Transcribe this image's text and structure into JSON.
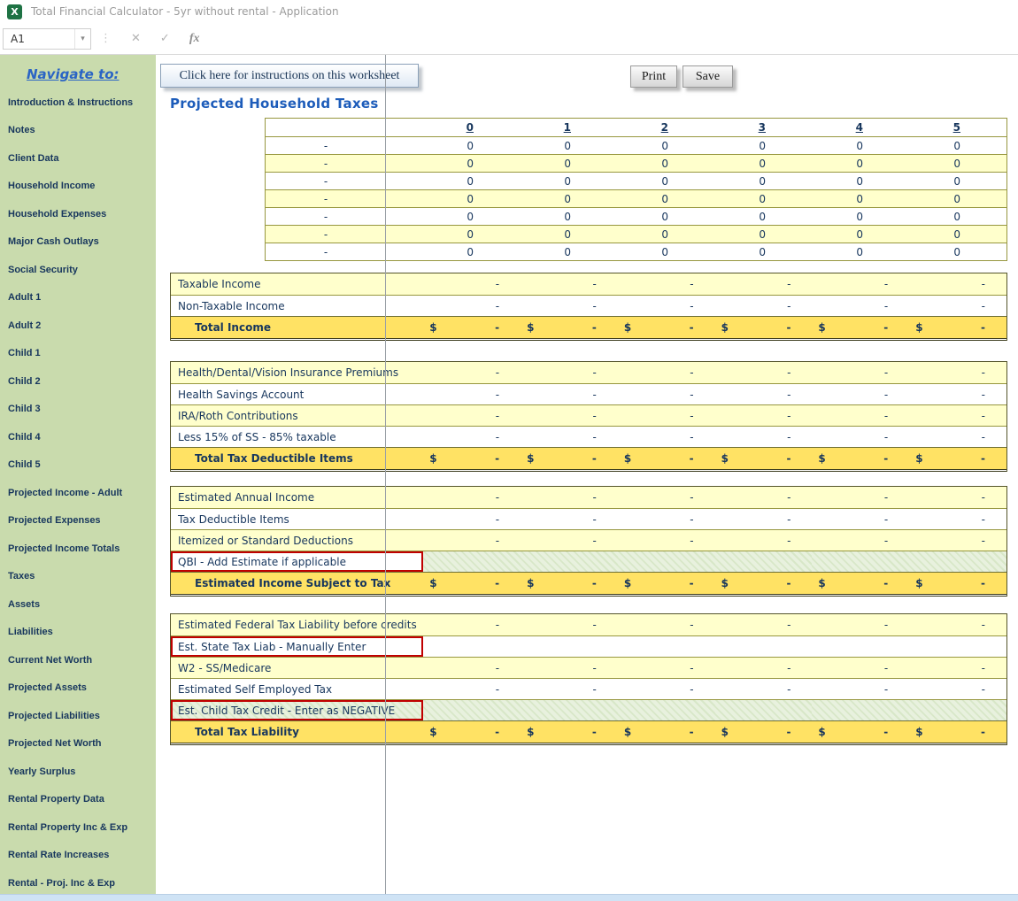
{
  "window": {
    "icon_letter": "X",
    "title": "Total Financial Calculator - 5yr without rental - Application"
  },
  "formula_bar": {
    "cell_reference": "A1",
    "dropdown_icon": "▾",
    "separator_icon": "⋮",
    "cancel_icon": "✕",
    "enter_icon": "✓",
    "fx_icon": "fx",
    "formula_value": ""
  },
  "sidebar": {
    "header": "Navigate to:",
    "items": [
      "Introduction & Instructions",
      "Notes",
      "Client Data",
      "Household Income",
      "Household Expenses",
      "Major Cash Outlays",
      "Social Security",
      "Adult 1",
      "Adult 2",
      "Child 1",
      "Child 2",
      "Child 3",
      "Child 4",
      "Child 5",
      "Projected Income - Adult",
      "Projected Expenses",
      "Projected Income Totals",
      "Taxes",
      "Assets",
      "Liabilities",
      "Current Net Worth",
      "Projected Assets",
      "Projected Liabilities",
      "Projected Net Worth",
      "Yearly Surplus",
      "Rental Property Data",
      "Rental Property Inc & Exp",
      "Rental Rate Increases",
      "Rental - Proj. Inc & Exp"
    ]
  },
  "toolbar": {
    "instructions": "Click here for instructions on this worksheet",
    "print": "Print",
    "save": "Save"
  },
  "sheet": {
    "title": "Projected Household Taxes",
    "currency_symbol": "$",
    "year_headers": [
      "0",
      "1",
      "2",
      "3",
      "4",
      "5"
    ],
    "summary_rows": [
      {
        "label": "-",
        "values": [
          "0",
          "0",
          "0",
          "0",
          "0",
          "0"
        ]
      },
      {
        "label": "-",
        "values": [
          "0",
          "0",
          "0",
          "0",
          "0",
          "0"
        ]
      },
      {
        "label": "-",
        "values": [
          "0",
          "0",
          "0",
          "0",
          "0",
          "0"
        ]
      },
      {
        "label": "-",
        "values": [
          "0",
          "0",
          "0",
          "0",
          "0",
          "0"
        ]
      },
      {
        "label": "-",
        "values": [
          "0",
          "0",
          "0",
          "0",
          "0",
          "0"
        ]
      },
      {
        "label": "-",
        "values": [
          "0",
          "0",
          "0",
          "0",
          "0",
          "0"
        ]
      },
      {
        "label": "-",
        "values": [
          "0",
          "0",
          "0",
          "0",
          "0",
          "0"
        ]
      }
    ],
    "sections": [
      {
        "name": "total-income",
        "rows": [
          {
            "label": "Taxable Income",
            "fill": "yellow",
            "values": [
              "-",
              "-",
              "-",
              "-",
              "-",
              "-"
            ]
          },
          {
            "label": "Non-Taxable Income",
            "fill": "white",
            "values": [
              "-",
              "-",
              "-",
              "-",
              "-",
              "-"
            ]
          },
          {
            "label": "Total Income",
            "fill": "gold",
            "total": true,
            "currency": true,
            "values": [
              "-",
              "-",
              "-",
              "-",
              "-",
              "-"
            ]
          }
        ]
      },
      {
        "name": "tax-deductible-items",
        "rows": [
          {
            "label": "Health/Dental/Vision Insurance Premiums",
            "fill": "yellow",
            "values": [
              "-",
              "-",
              "-",
              "-",
              "-",
              "-"
            ]
          },
          {
            "label": "Health Savings Account",
            "fill": "white",
            "values": [
              "-",
              "-",
              "-",
              "-",
              "-",
              "-"
            ]
          },
          {
            "label": "IRA/Roth Contributions",
            "fill": "yellow",
            "values": [
              "-",
              "-",
              "-",
              "-",
              "-",
              "-"
            ]
          },
          {
            "label": "Less 15% of SS - 85% taxable",
            "fill": "white",
            "values": [
              "-",
              "-",
              "-",
              "-",
              "-",
              "-"
            ]
          },
          {
            "label": "Total Tax Deductible Items",
            "fill": "gold",
            "total": true,
            "currency": true,
            "values": [
              "-",
              "-",
              "-",
              "-",
              "-",
              "-"
            ]
          }
        ]
      },
      {
        "name": "income-subject-to-tax",
        "rows": [
          {
            "label": "Estimated Annual Income",
            "fill": "yellow",
            "values": [
              "-",
              "-",
              "-",
              "-",
              "-",
              "-"
            ]
          },
          {
            "label": "Tax Deductible Items",
            "fill": "white",
            "values": [
              "-",
              "-",
              "-",
              "-",
              "-",
              "-"
            ]
          },
          {
            "label": "Itemized or Standard Deductions",
            "fill": "yellow",
            "values": [
              "-",
              "-",
              "-",
              "-",
              "-",
              "-"
            ]
          },
          {
            "label": "QBI - Add Estimate if applicable",
            "fill": "green",
            "label_fill": "white",
            "red_box": true,
            "values": [
              "",
              "",
              "",
              "",
              "",
              ""
            ]
          },
          {
            "label": "Estimated Income Subject to Tax",
            "fill": "gold",
            "total": true,
            "currency": true,
            "values": [
              "-",
              "-",
              "-",
              "-",
              "-",
              "-"
            ]
          }
        ]
      },
      {
        "name": "tax-liability",
        "rows": [
          {
            "label": "Estimated Federal Tax Liability before credits",
            "fill": "yellow",
            "values": [
              "-",
              "-",
              "-",
              "-",
              "-",
              "-"
            ]
          },
          {
            "label": "Est. State Tax Liab - Manually Enter",
            "fill": "white",
            "red_box": true,
            "values": [
              "",
              "",
              "",
              "",
              "",
              ""
            ]
          },
          {
            "label": "W2 - SS/Medicare",
            "fill": "yellow",
            "values": [
              "-",
              "-",
              "-",
              "-",
              "-",
              "-"
            ]
          },
          {
            "label": "Estimated Self Employed Tax",
            "fill": "white",
            "values": [
              "-",
              "-",
              "-",
              "-",
              "-",
              "-"
            ]
          },
          {
            "label": "Est. Child Tax Credit - Enter as NEGATIVE",
            "fill": "green",
            "red_box": true,
            "values": [
              "",
              "",
              "",
              "",
              "",
              ""
            ]
          },
          {
            "label": "Total Tax Liability",
            "fill": "gold",
            "total": true,
            "currency": true,
            "values": [
              "-",
              "-",
              "-",
              "-",
              "-",
              "-"
            ]
          }
        ]
      }
    ]
  },
  "colors": {
    "sidebar_green": "#c9dbad",
    "navy": "#17365d",
    "title_blue": "#1d5cba",
    "nav_link_blue": "#2a64c5",
    "gold": "#ffe264",
    "pale_yellow": "#ffffcc",
    "pale_green": "#e8f1de",
    "red_box": "#c00000",
    "grid_olive": "#97973f",
    "table_edge": "#55552b",
    "scrollbar_blue": "#cfe3f5"
  }
}
